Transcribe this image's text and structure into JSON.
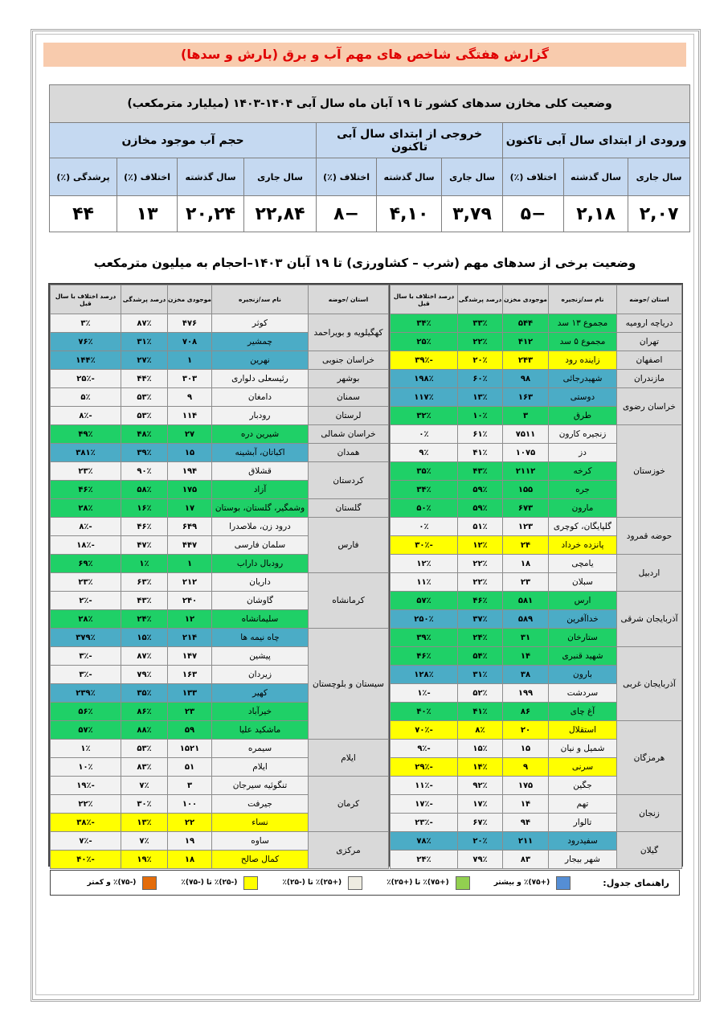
{
  "report_title": "گزارش هفتگی شاخص های مهم آب و برق (بارش و سدها)",
  "summary": {
    "title": "وضعیت کلی مخازن سدهای کشور تا ۱۹ آبان ماه سال آبی ۱۴۰۴-۱۴۰۳ (میلیارد مترمکعب)",
    "groups": [
      "ورودی از ابتدای سال آبی تاکنون",
      "خروجی از ابتدای سال آبی تاکنون",
      "حجم آب موجود مخازن"
    ],
    "subheaders": [
      "سال جاری",
      "سال گذشته",
      "اختلاف (٪)",
      "سال جاری",
      "سال گذشته",
      "اختلاف (٪)",
      "سال جاری",
      "سال گذشته",
      "اختلاف (٪)",
      "پرشدگی (٪)"
    ],
    "values": [
      "۲,۰۷",
      "۲,۱۸",
      "−۵",
      "۳,۷۹",
      "۴,۱۰",
      "−۸",
      "۲۲,۸۴",
      "۲۰,۲۴",
      "۱۳",
      "۴۴"
    ]
  },
  "section_title": "وضعیت برخی از سدهای مهم (شرب – کشاورزی) تا ۱۹ آبان ۱۴۰۳–احجام به میلیون مترمکعب",
  "columns": [
    "استان /حوضه",
    "نام سد/زنجیره",
    "موجودی مخزن",
    "درصد پرشدگی",
    "درصد اختلاف با سال قبل"
  ],
  "colors": {
    "green": "#1fd067",
    "blue": "#4bacc6",
    "yellow": "#ffff00",
    "none": "#f2f2f2"
  },
  "right_table": [
    {
      "province": "دریاچه ارومیه",
      "dams": [
        {
          "name": "مجموع ۱۳ سد",
          "storage": "۵۴۴",
          "fill": "۳۳٪",
          "diff": "۳۴٪",
          "color": "green"
        }
      ]
    },
    {
      "province": "تهران",
      "dams": [
        {
          "name": "مجموع ۵ سد",
          "storage": "۴۱۲",
          "fill": "۲۲٪",
          "diff": "۲۵٪",
          "color": "green"
        }
      ]
    },
    {
      "province": "اصفهان",
      "dams": [
        {
          "name": "زاینده رود",
          "storage": "۲۴۳",
          "fill": "۲۰٪",
          "diff": "-۳۹٪",
          "color": "yellow"
        }
      ]
    },
    {
      "province": "مازندران",
      "dams": [
        {
          "name": "شهیدرجائی",
          "storage": "۹۸",
          "fill": "۶۰٪",
          "diff": "۱۹۸٪",
          "color": "blue"
        }
      ]
    },
    {
      "province": "خراسان رضوی",
      "dams": [
        {
          "name": "دوستی",
          "storage": "۱۶۳",
          "fill": "۱۳٪",
          "diff": "۱۱۷٪",
          "color": "blue"
        },
        {
          "name": "طرق",
          "storage": "۳",
          "fill": "۱۰٪",
          "diff": "۳۲٪",
          "color": "green"
        }
      ]
    },
    {
      "province": "خوزستان",
      "dams": [
        {
          "name": "زنجیره کارون",
          "storage": "۷۵۱۱",
          "fill": "۶۱٪",
          "diff": "۰٪",
          "color": "none"
        },
        {
          "name": "دز",
          "storage": "۱۰۷۵",
          "fill": "۴۱٪",
          "diff": "۹٪",
          "color": "none"
        },
        {
          "name": "کرخه",
          "storage": "۲۱۱۲",
          "fill": "۴۳٪",
          "diff": "۳۵٪",
          "color": "green"
        },
        {
          "name": "جره",
          "storage": "۱۵۵",
          "fill": "۵۹٪",
          "diff": "۳۴٪",
          "color": "green"
        },
        {
          "name": "مارون",
          "storage": "۶۷۳",
          "fill": "۵۹٪",
          "diff": "۵۰٪",
          "color": "green"
        }
      ]
    },
    {
      "province": "حوضه قمرود",
      "dams": [
        {
          "name": "گلپایگان، کوچری",
          "storage": "۱۲۳",
          "fill": "۵۱٪",
          "diff": "۰٪",
          "color": "none"
        },
        {
          "name": "پانزده خرداد",
          "storage": "۲۴",
          "fill": "۱۲٪",
          "diff": "-۳۰٪",
          "color": "yellow"
        }
      ]
    },
    {
      "province": "اردبیل",
      "dams": [
        {
          "name": "یامچی",
          "storage": "۱۸",
          "fill": "۲۲٪",
          "diff": "۱۲٪",
          "color": "none"
        },
        {
          "name": "سبلان",
          "storage": "۲۳",
          "fill": "۲۲٪",
          "diff": "۱۱٪",
          "color": "none"
        }
      ]
    },
    {
      "province": "آذربایجان شرقی",
      "dams": [
        {
          "name": "ارس",
          "storage": "۵۸۱",
          "fill": "۴۶٪",
          "diff": "۵۷٪",
          "color": "green"
        },
        {
          "name": "خداآفرین",
          "storage": "۵۸۹",
          "fill": "۳۷٪",
          "diff": "۲۵۰٪",
          "color": "blue"
        },
        {
          "name": "ستارخان",
          "storage": "۳۱",
          "fill": "۲۴٪",
          "diff": "۳۹٪",
          "color": "green"
        }
      ]
    },
    {
      "province": "آذربایجان غربی",
      "dams": [
        {
          "name": "شهید قنبری",
          "storage": "۱۴",
          "fill": "۵۴٪",
          "diff": "۴۶٪",
          "color": "green"
        },
        {
          "name": "بارون",
          "storage": "۳۸",
          "fill": "۳۱٪",
          "diff": "۱۲۸٪",
          "color": "blue"
        },
        {
          "name": "سردشت",
          "storage": "۱۹۹",
          "fill": "۵۲٪",
          "diff": "-۱٪",
          "color": "none"
        },
        {
          "name": "آغ چای",
          "storage": "۸۶",
          "fill": "۴۱٪",
          "diff": "۴۰٪",
          "color": "green"
        }
      ]
    },
    {
      "province": "هرمزگان",
      "dams": [
        {
          "name": "استقلال",
          "storage": "۲۰",
          "fill": "۸٪",
          "diff": "-۷۰٪",
          "color": "yellow"
        },
        {
          "name": "شمیل و نیان",
          "storage": "۱۵",
          "fill": "۱۵٪",
          "diff": "-۹٪",
          "color": "none"
        },
        {
          "name": "سرنی",
          "storage": "۹",
          "fill": "۱۴٪",
          "diff": "-۲۹٪",
          "color": "yellow"
        },
        {
          "name": "جگین",
          "storage": "۱۷۵",
          "fill": "۹۲٪",
          "diff": "-۱۱٪",
          "color": "none"
        }
      ]
    },
    {
      "province": "زنجان",
      "dams": [
        {
          "name": "تهم",
          "storage": "۱۴",
          "fill": "۱۷٪",
          "diff": "-۱۷٪",
          "color": "none"
        },
        {
          "name": "تالوار",
          "storage": "۹۴",
          "fill": "۶۷٪",
          "diff": "-۲۳٪",
          "color": "none"
        }
      ]
    },
    {
      "province": "گیلان",
      "dams": [
        {
          "name": "سفیدرود",
          "storage": "۲۱۱",
          "fill": "۲۰٪",
          "diff": "۷۸٪",
          "color": "blue"
        },
        {
          "name": "شهر بیجار",
          "storage": "۸۳",
          "fill": "۷۹٪",
          "diff": "۲۴٪",
          "color": "none"
        }
      ]
    }
  ],
  "left_table": [
    {
      "province": "کهگیلویه و بویراحمد",
      "dams": [
        {
          "name": "کوثر",
          "storage": "۴۷۶",
          "fill": "۸۷٪",
          "diff": "۳٪",
          "color": "none"
        },
        {
          "name": "چمشیر",
          "storage": "۷۰۸",
          "fill": "۳۱٪",
          "diff": "۷۶٪",
          "color": "blue"
        }
      ]
    },
    {
      "province": "خراسان جنوبی",
      "dams": [
        {
          "name": "نهرین",
          "storage": "۱",
          "fill": "۲۷٪",
          "diff": "۱۴۴٪",
          "color": "blue"
        }
      ]
    },
    {
      "province": "بوشهر",
      "dams": [
        {
          "name": "رئیسعلی دلواری",
          "storage": "۳۰۳",
          "fill": "۴۴٪",
          "diff": "-۲۵٪",
          "color": "none"
        }
      ]
    },
    {
      "province": "سمنان",
      "dams": [
        {
          "name": "دامغان",
          "storage": "۹",
          "fill": "۵۳٪",
          "diff": "۵٪",
          "color": "none"
        }
      ]
    },
    {
      "province": "لرستان",
      "dams": [
        {
          "name": "رودبار",
          "storage": "۱۱۴",
          "fill": "۵۳٪",
          "diff": "-۸٪",
          "color": "none"
        }
      ]
    },
    {
      "province": "خراسان شمالی",
      "dams": [
        {
          "name": "شیرین دره",
          "storage": "۲۷",
          "fill": "۴۸٪",
          "diff": "۴۹٪",
          "color": "green"
        }
      ]
    },
    {
      "province": "همدان",
      "dams": [
        {
          "name": "اکباتان، آبشینه",
          "storage": "۱۵",
          "fill": "۳۹٪",
          "diff": "۳۸۱٪",
          "color": "blue"
        }
      ]
    },
    {
      "province": "کردستان",
      "dams": [
        {
          "name": "قشلاق",
          "storage": "۱۹۴",
          "fill": "۹۰٪",
          "diff": "۲۳٪",
          "color": "none"
        },
        {
          "name": "آزاد",
          "storage": "۱۷۵",
          "fill": "۵۸٪",
          "diff": "۴۶٪",
          "color": "green"
        }
      ]
    },
    {
      "province": "گلستان",
      "dams": [
        {
          "name": "وشمگیر، گلستان، بوستان",
          "storage": "۱۷",
          "fill": "۱۶٪",
          "diff": "۲۸٪",
          "color": "green"
        }
      ]
    },
    {
      "province": "فارس",
      "dams": [
        {
          "name": "درود زن، ملاصدرا",
          "storage": "۶۴۹",
          "fill": "۴۶٪",
          "diff": "-۸٪",
          "color": "none"
        },
        {
          "name": "سلمان فارسی",
          "storage": "۴۴۷",
          "fill": "۴۷٪",
          "diff": "-۱۸٪",
          "color": "none"
        },
        {
          "name": "رودبال داراب",
          "storage": "۱",
          "fill": "۱٪",
          "diff": "۶۹٪",
          "color": "green"
        }
      ]
    },
    {
      "province": "کرمانشاه",
      "dams": [
        {
          "name": "داریان",
          "storage": "۲۱۲",
          "fill": "۶۳٪",
          "diff": "۲۳٪",
          "color": "none"
        },
        {
          "name": "گاوشان",
          "storage": "۲۴۰",
          "fill": "۴۳٪",
          "diff": "-۲٪",
          "color": "none"
        },
        {
          "name": "سلیمانشاه",
          "storage": "۱۲",
          "fill": "۲۴٪",
          "diff": "۲۸٪",
          "color": "green"
        }
      ]
    },
    {
      "province": "سیستان و بلوچستان",
      "dams": [
        {
          "name": "چاه نیمه ها",
          "storage": "۲۱۴",
          "fill": "۱۵٪",
          "diff": "۳۷۹٪",
          "color": "blue"
        },
        {
          "name": "پیشین",
          "storage": "۱۴۷",
          "fill": "۸۷٪",
          "diff": "-۳٪",
          "color": "none"
        },
        {
          "name": "زیردان",
          "storage": "۱۶۳",
          "fill": "۷۹٪",
          "diff": "-۳٪",
          "color": "none"
        },
        {
          "name": "کهیر",
          "storage": "۱۳۳",
          "fill": "۳۵٪",
          "diff": "۲۳۹٪",
          "color": "blue"
        },
        {
          "name": "خیرآباد",
          "storage": "۲۳",
          "fill": "۸۶٪",
          "diff": "۵۶٪",
          "color": "green"
        },
        {
          "name": "ماشکید علیا",
          "storage": "۵۹",
          "fill": "۸۸٪",
          "diff": "۵۷٪",
          "color": "green"
        }
      ]
    },
    {
      "province": "ایلام",
      "dams": [
        {
          "name": "سیمره",
          "storage": "۱۵۲۱",
          "fill": "۵۳٪",
          "diff": "۱٪",
          "color": "none"
        },
        {
          "name": "ایلام",
          "storage": "۵۱",
          "fill": "۸۳٪",
          "diff": "۱۰٪",
          "color": "none"
        }
      ]
    },
    {
      "province": "کرمان",
      "dams": [
        {
          "name": "تنگوئیه سیرجان",
          "storage": "۳",
          "fill": "۷٪",
          "diff": "-۱۹٪",
          "color": "none"
        },
        {
          "name": "جیرفت",
          "storage": "۱۰۰",
          "fill": "۳۰٪",
          "diff": "۲۲٪",
          "color": "none"
        },
        {
          "name": "نساء",
          "storage": "۲۲",
          "fill": "۱۳٪",
          "diff": "-۳۸٪",
          "color": "yellow"
        }
      ]
    },
    {
      "province": "مرکزی",
      "dams": [
        {
          "name": "ساوه",
          "storage": "۱۹",
          "fill": "۷٪",
          "diff": "-۷٪",
          "color": "none"
        },
        {
          "name": "کمال صالح",
          "storage": "۱۸",
          "fill": "۱۹٪",
          "diff": "-۴۰٪",
          "color": "yellow"
        }
      ]
    }
  ],
  "legend": {
    "title": "راهنمای جدول:",
    "items": [
      {
        "label": "(+۷۵)٪ و بیشتر",
        "color": "#558ed5"
      },
      {
        "label": "(+۷۵)٪ تا (+۲۵)٪",
        "color": "#92d050"
      },
      {
        "label": "(+۲۵)٪ تا (-۲۵)٪",
        "color": "#eeece1"
      },
      {
        "label": "(-۲۵)٪ تا (-۷۵)٪",
        "color": "#ffff00"
      },
      {
        "label": "(-۷۵)٪ و کمتر",
        "color": "#e46c0a"
      }
    ]
  }
}
